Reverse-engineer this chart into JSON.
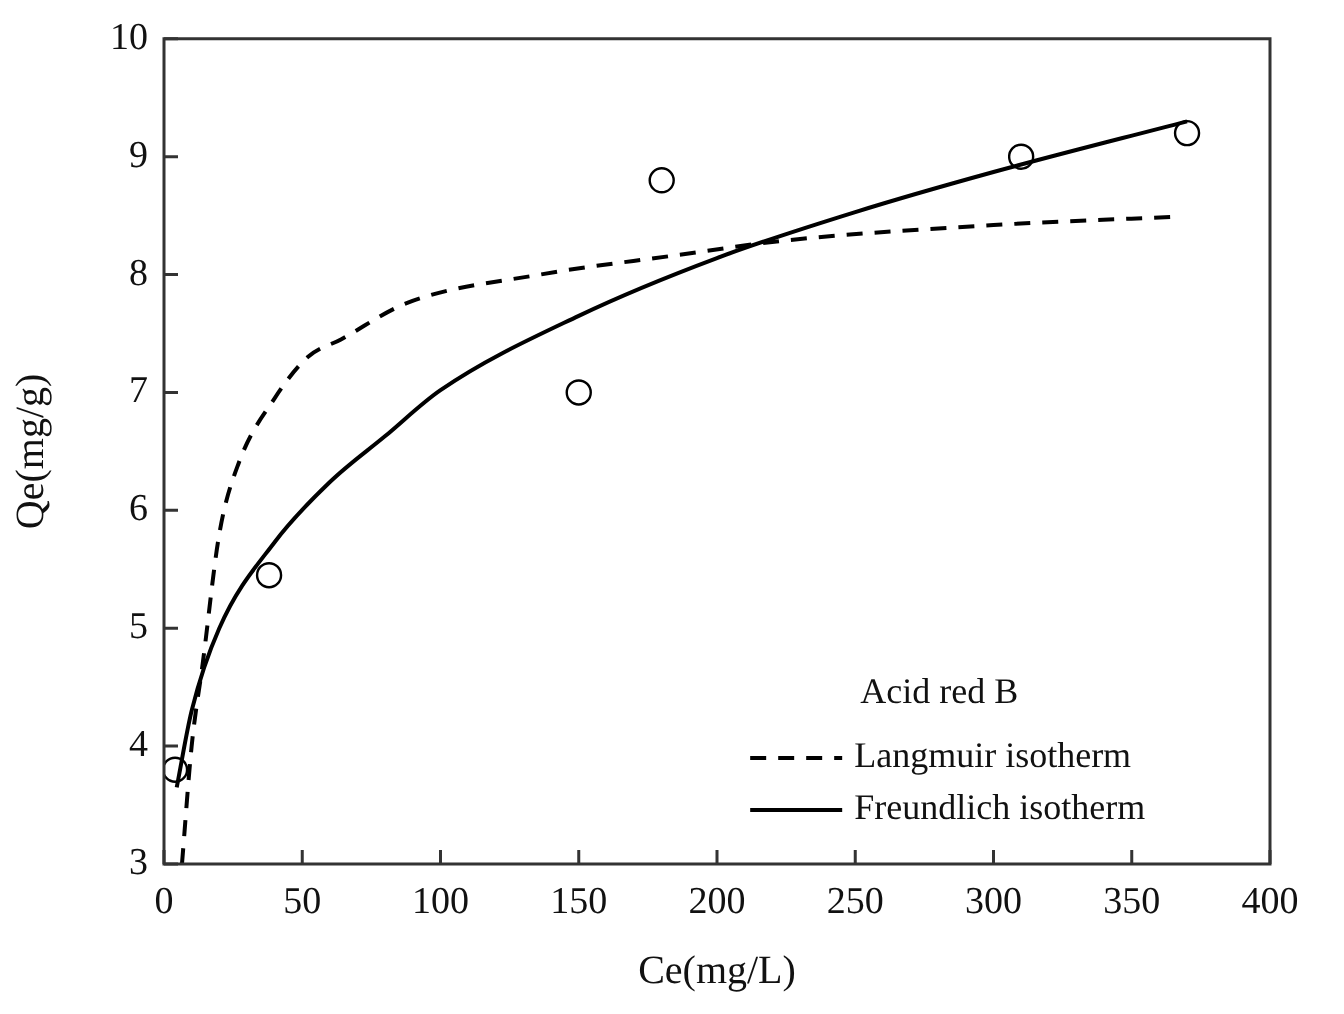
{
  "chart_data": {
    "type": "line",
    "xlabel": "Ce(mg/L)",
    "ylabel": "Qe(mg/g)",
    "legend_title": "Acid red B",
    "xlim": [
      0,
      400
    ],
    "xticks": [
      0,
      50,
      100,
      150,
      200,
      250,
      300,
      350,
      400
    ],
    "ylim": [
      3,
      10
    ],
    "yticks": [
      3,
      4,
      5,
      6,
      7,
      8,
      9,
      10
    ],
    "grid": false,
    "legend": "bottom right",
    "series": [
      {
        "type": "scatter",
        "color": "#000000",
        "marker": "circle",
        "x": [
          4,
          38,
          150,
          180,
          310,
          370
        ],
        "values": [
          3.8,
          5.45,
          7.0,
          8.8,
          9.0,
          9.2
        ]
      },
      {
        "type": "line",
        "name": "Langmuir isotherm",
        "color": "#000000",
        "line_style": "dashed",
        "marker": "none",
        "x": [
          6.5,
          10,
          14,
          20,
          27,
          40,
          52,
          64,
          88,
          136,
          184,
          225,
          300,
          365
        ],
        "values": [
          3.0,
          4.0,
          4.7,
          5.8,
          6.4,
          6.95,
          7.3,
          7.45,
          7.76,
          8.0,
          8.16,
          8.29,
          8.42,
          8.49
        ]
      },
      {
        "type": "line",
        "name": "Freundlich isotherm",
        "color": "#000000",
        "line_style": "solid",
        "marker": "none",
        "x": [
          4.6,
          10,
          20,
          40,
          60,
          80,
          100,
          150,
          200,
          250,
          300,
          370
        ],
        "values": [
          3.65,
          4.3,
          5.0,
          5.73,
          6.24,
          6.63,
          7.02,
          7.65,
          8.14,
          8.53,
          8.87,
          9.3
        ]
      }
    ]
  }
}
